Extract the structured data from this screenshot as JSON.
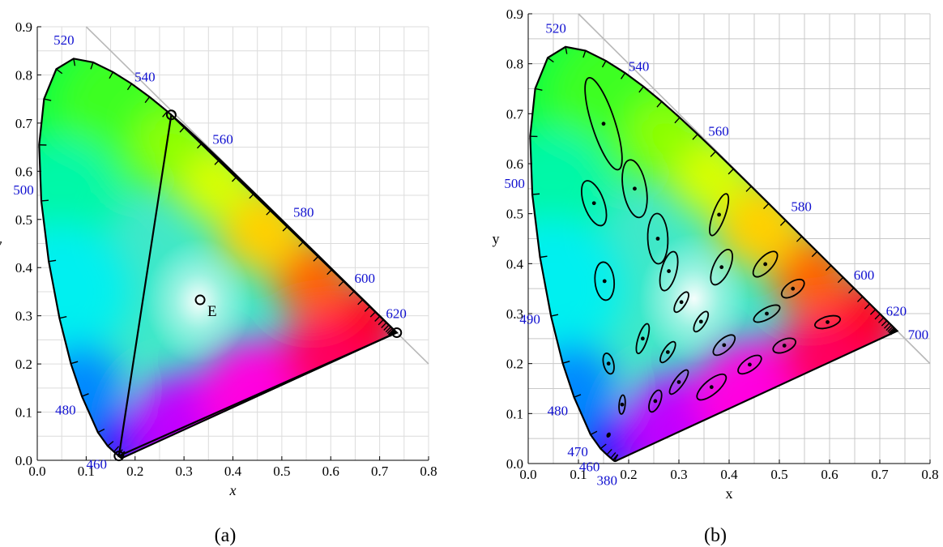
{
  "chart_data": [
    {
      "type": "scatter",
      "subtype": "cie-1931-chromaticity-diagram",
      "caption": "(a)",
      "xlabel": "x",
      "ylabel": "y",
      "xlim": [
        0.0,
        0.8
      ],
      "ylim": [
        0.0,
        0.9
      ],
      "xticks": [
        "0.0",
        "0.1",
        "0.2",
        "0.3",
        "0.4",
        "0.5",
        "0.6",
        "0.7",
        "0.8"
      ],
      "yticks": [
        "0.0",
        "0.1",
        "0.2",
        "0.3",
        "0.4",
        "0.5",
        "0.6",
        "0.7",
        "0.8",
        "0.9"
      ],
      "grid": true,
      "wavelength_labels": [
        {
          "label": "460",
          "x": 0.144,
          "y": 0.03
        },
        {
          "label": "480",
          "x": 0.091,
          "y": 0.133
        },
        {
          "label": "500",
          "x": 0.008,
          "y": 0.538
        },
        {
          "label": "520",
          "x": 0.074,
          "y": 0.834
        },
        {
          "label": "540",
          "x": 0.23,
          "y": 0.754
        },
        {
          "label": "560",
          "x": 0.373,
          "y": 0.624
        },
        {
          "label": "580",
          "x": 0.512,
          "y": 0.487
        },
        {
          "label": "600",
          "x": 0.627,
          "y": 0.372
        },
        {
          "label": "620",
          "x": 0.691,
          "y": 0.308
        }
      ],
      "triangle_vertices": [
        {
          "x": 0.735,
          "y": 0.265
        },
        {
          "x": 0.274,
          "y": 0.717
        },
        {
          "x": 0.167,
          "y": 0.009
        }
      ],
      "white_point": {
        "label": "E",
        "x": 0.333,
        "y": 0.333
      }
    },
    {
      "type": "scatter",
      "subtype": "macadam-ellipses",
      "caption": "(b)",
      "xlabel": "x",
      "ylabel": "y",
      "xlim": [
        0.0,
        0.8
      ],
      "ylim": [
        0.0,
        0.9
      ],
      "xticks": [
        "0.0",
        "0.1",
        "0.2",
        "0.3",
        "0.4",
        "0.5",
        "0.6",
        "0.7",
        "0.8"
      ],
      "yticks": [
        "0.0",
        "0.1",
        "0.2",
        "0.3",
        "0.4",
        "0.5",
        "0.6",
        "0.7",
        "0.8",
        "0.9"
      ],
      "grid": true,
      "wavelength_labels": [
        {
          "label": "380",
          "x": 0.175,
          "y": 0.005
        },
        {
          "label": "460",
          "x": 0.144,
          "y": 0.03
        },
        {
          "label": "470",
          "x": 0.124,
          "y": 0.058
        },
        {
          "label": "480",
          "x": 0.091,
          "y": 0.133
        },
        {
          "label": "490",
          "x": 0.045,
          "y": 0.295
        },
        {
          "label": "500",
          "x": 0.008,
          "y": 0.538
        },
        {
          "label": "520",
          "x": 0.074,
          "y": 0.834
        },
        {
          "label": "540",
          "x": 0.23,
          "y": 0.754
        },
        {
          "label": "560",
          "x": 0.373,
          "y": 0.624
        },
        {
          "label": "580",
          "x": 0.512,
          "y": 0.487
        },
        {
          "label": "600",
          "x": 0.627,
          "y": 0.372
        },
        {
          "label": "620",
          "x": 0.691,
          "y": 0.308
        },
        {
          "label": "700",
          "x": 0.735,
          "y": 0.265
        }
      ],
      "ellipses": [
        {
          "x": 0.16,
          "y": 0.057,
          "a": 0.004,
          "b": 0.001,
          "angle": 60
        },
        {
          "x": 0.187,
          "y": 0.118,
          "a": 0.019,
          "b": 0.006,
          "angle": 85
        },
        {
          "x": 0.253,
          "y": 0.125,
          "a": 0.023,
          "b": 0.01,
          "angle": 68
        },
        {
          "x": 0.15,
          "y": 0.68,
          "a": 0.096,
          "b": 0.023,
          "angle": 108
        },
        {
          "x": 0.131,
          "y": 0.521,
          "a": 0.047,
          "b": 0.02,
          "angle": 110
        },
        {
          "x": 0.212,
          "y": 0.55,
          "a": 0.058,
          "b": 0.023,
          "angle": 100
        },
        {
          "x": 0.258,
          "y": 0.45,
          "a": 0.05,
          "b": 0.02,
          "angle": 92
        },
        {
          "x": 0.152,
          "y": 0.365,
          "a": 0.038,
          "b": 0.019,
          "angle": 95
        },
        {
          "x": 0.28,
          "y": 0.385,
          "a": 0.04,
          "b": 0.015,
          "angle": 75
        },
        {
          "x": 0.38,
          "y": 0.498,
          "a": 0.044,
          "b": 0.012,
          "angle": 70
        },
        {
          "x": 0.16,
          "y": 0.2,
          "a": 0.021,
          "b": 0.01,
          "angle": 104
        },
        {
          "x": 0.228,
          "y": 0.25,
          "a": 0.031,
          "b": 0.009,
          "angle": 72
        },
        {
          "x": 0.305,
          "y": 0.323,
          "a": 0.023,
          "b": 0.009,
          "angle": 58
        },
        {
          "x": 0.385,
          "y": 0.393,
          "a": 0.038,
          "b": 0.016,
          "angle": 65
        },
        {
          "x": 0.472,
          "y": 0.399,
          "a": 0.032,
          "b": 0.014,
          "angle": 47
        },
        {
          "x": 0.527,
          "y": 0.35,
          "a": 0.026,
          "b": 0.013,
          "angle": 35
        },
        {
          "x": 0.475,
          "y": 0.3,
          "a": 0.029,
          "b": 0.011,
          "angle": 29
        },
        {
          "x": 0.51,
          "y": 0.236,
          "a": 0.024,
          "b": 0.012,
          "angle": 24
        },
        {
          "x": 0.596,
          "y": 0.283,
          "a": 0.026,
          "b": 0.011,
          "angle": 16
        },
        {
          "x": 0.344,
          "y": 0.284,
          "a": 0.023,
          "b": 0.009,
          "angle": 58
        },
        {
          "x": 0.39,
          "y": 0.237,
          "a": 0.027,
          "b": 0.012,
          "angle": 42
        },
        {
          "x": 0.441,
          "y": 0.198,
          "a": 0.027,
          "b": 0.012,
          "angle": 35
        },
        {
          "x": 0.278,
          "y": 0.223,
          "a": 0.024,
          "b": 0.009,
          "angle": 57
        },
        {
          "x": 0.3,
          "y": 0.163,
          "a": 0.029,
          "b": 0.009,
          "angle": 54
        },
        {
          "x": 0.365,
          "y": 0.153,
          "a": 0.036,
          "b": 0.014,
          "angle": 40
        }
      ]
    }
  ]
}
